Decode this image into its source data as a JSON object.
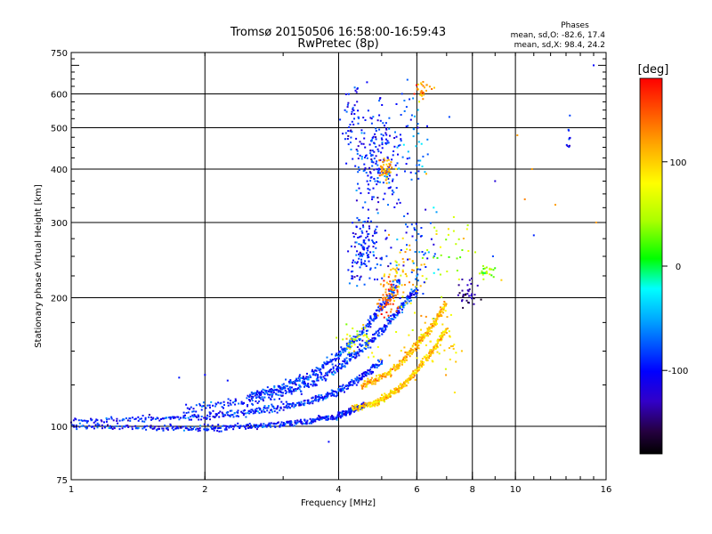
{
  "header": {
    "title_line1": "Tromsø 20150506 16:58:00-16:59:43",
    "title_line2": "RwPretec (8p)"
  },
  "stats": {
    "heading": "Phases",
    "o_mode": "mean, sd,O: -82.6, 17.4",
    "x_mode": "mean, sd,X:  98.4, 24.2"
  },
  "colorbar": {
    "label": "[deg]",
    "ticks": [
      {
        "value": 100,
        "label": "100"
      },
      {
        "value": 0,
        "label": "0"
      },
      {
        "value": -100,
        "label": "-100"
      }
    ],
    "range": [
      -180,
      180
    ]
  },
  "chart_data": {
    "type": "scatter",
    "xlabel": "Frequency [MHz]",
    "ylabel": "Stationary phase Virtual Height [km]",
    "xscale": "log",
    "yscale": "log",
    "xlim": [
      1,
      16
    ],
    "ylim": [
      75,
      750
    ],
    "x_ticks": [
      {
        "value": 1,
        "label": "1"
      },
      {
        "value": 2,
        "label": "2"
      },
      {
        "value": 4,
        "label": "4"
      },
      {
        "value": 6,
        "label": "6"
      },
      {
        "value": 8,
        "label": "8"
      },
      {
        "value": 10,
        "label": "10"
      },
      {
        "value": 16,
        "label": "16"
      }
    ],
    "y_ticks": [
      {
        "value": 75,
        "label": "75"
      },
      {
        "value": 100,
        "label": "100"
      },
      {
        "value": 200,
        "label": "200"
      },
      {
        "value": 300,
        "label": "300"
      },
      {
        "value": 400,
        "label": "400"
      },
      {
        "value": 500,
        "label": "500"
      },
      {
        "value": 600,
        "label": "600"
      },
      {
        "value": 750,
        "label": "750"
      }
    ],
    "grid_x": [
      2,
      4,
      6,
      8,
      10
    ],
    "grid_y": [
      100,
      200,
      300,
      400,
      500,
      600
    ],
    "traces": [
      {
        "points": [
          [
            1.0,
            100
          ],
          [
            1.5,
            99
          ],
          [
            2.0,
            99
          ],
          [
            2.5,
            100
          ],
          [
            3.0,
            101
          ],
          [
            3.5,
            103
          ],
          [
            4.0,
            106
          ],
          [
            4.3,
            109
          ],
          [
            4.6,
            113
          ]
        ],
        "phase": -95,
        "spread": 2.5
      },
      {
        "points": [
          [
            1.0,
            103
          ],
          [
            1.5,
            104
          ],
          [
            2.0,
            106
          ],
          [
            2.5,
            108
          ],
          [
            3.0,
            111
          ],
          [
            3.5,
            115
          ],
          [
            4.0,
            121
          ],
          [
            4.5,
            130
          ],
          [
            5.0,
            142
          ]
        ],
        "phase": -92,
        "spread": 3.0
      },
      {
        "points": [
          [
            1.8,
            110
          ],
          [
            2.5,
            115
          ],
          [
            3.0,
            120
          ],
          [
            3.5,
            127
          ],
          [
            4.0,
            137
          ],
          [
            4.5,
            152
          ],
          [
            5.0,
            168
          ],
          [
            5.5,
            188
          ],
          [
            6.0,
            210
          ]
        ],
        "phase": -90,
        "spread": 4.0
      },
      {
        "points": [
          [
            2.5,
            118
          ],
          [
            3.0,
            124
          ],
          [
            3.5,
            133
          ],
          [
            4.0,
            147
          ],
          [
            4.5,
            165
          ],
          [
            5.0,
            190
          ],
          [
            5.5,
            220
          ]
        ],
        "phase": -88,
        "spread": 3.5
      },
      {
        "points": [
          [
            4.3,
            110
          ],
          [
            4.8,
            113
          ],
          [
            5.2,
            118
          ],
          [
            5.6,
            125
          ],
          [
            6.0,
            135
          ],
          [
            6.5,
            150
          ],
          [
            7.0,
            170
          ]
        ],
        "phase": 100,
        "spread": 2.5
      },
      {
        "points": [
          [
            4.5,
            125
          ],
          [
            5.0,
            130
          ],
          [
            5.5,
            140
          ],
          [
            6.0,
            155
          ],
          [
            6.5,
            172
          ],
          [
            7.0,
            195
          ]
        ],
        "phase": 110,
        "spread": 3.0
      }
    ],
    "clusters": [
      {
        "center": [
          4.9,
          430
        ],
        "sx": 0.06,
        "sy": 0.14,
        "n": 200,
        "phase": -95
      },
      {
        "center": [
          4.3,
          530
        ],
        "sx": 0.03,
        "sy": 0.09,
        "n": 50,
        "phase": -100
      },
      {
        "center": [
          5.1,
          400
        ],
        "sx": 0.02,
        "sy": 0.03,
        "n": 45,
        "phase": 120
      },
      {
        "center": [
          4.6,
          260
        ],
        "sx": 0.05,
        "sy": 0.09,
        "n": 140,
        "phase": -95
      },
      {
        "center": [
          5.2,
          200
        ],
        "sx": 0.03,
        "sy": 0.05,
        "n": 70,
        "phase": 140
      },
      {
        "center": [
          5.6,
          230
        ],
        "sx": 0.05,
        "sy": 0.08,
        "n": 60,
        "phase": 95
      },
      {
        "center": [
          6.2,
          610
        ],
        "sx": 0.02,
        "sy": 0.03,
        "n": 30,
        "phase": 120
      },
      {
        "center": [
          5.8,
          470
        ],
        "sx": 0.05,
        "sy": 0.15,
        "n": 50,
        "phase": -70
      },
      {
        "center": [
          6.0,
          260
        ],
        "sx": 0.07,
        "sy": 0.14,
        "n": 60,
        "phase": -80
      },
      {
        "center": [
          7.8,
          205
        ],
        "sx": 0.03,
        "sy": 0.04,
        "n": 35,
        "phase": -140
      },
      {
        "center": [
          8.6,
          230
        ],
        "sx": 0.02,
        "sy": 0.02,
        "n": 25,
        "phase": 40
      },
      {
        "center": [
          7.0,
          260
        ],
        "sx": 0.06,
        "sy": 0.1,
        "n": 30,
        "phase": 60
      },
      {
        "center": [
          4.5,
          160
        ],
        "sx": 0.05,
        "sy": 0.06,
        "n": 40,
        "phase": 70
      },
      {
        "center": [
          6.5,
          160
        ],
        "sx": 0.08,
        "sy": 0.1,
        "n": 50,
        "phase": 90
      },
      {
        "center": [
          13.2,
          470
        ],
        "sx": 0.005,
        "sy": 0.06,
        "n": 10,
        "phase": -100
      }
    ],
    "isolated": [
      [
        9.0,
        375,
        -120
      ],
      [
        10.1,
        480,
        120
      ],
      [
        10.5,
        340,
        130
      ],
      [
        10.9,
        400,
        120
      ],
      [
        12.3,
        330,
        120
      ],
      [
        15.0,
        700,
        -100
      ],
      [
        15.2,
        300,
        120
      ],
      [
        11.0,
        280,
        -90
      ],
      [
        8.9,
        250,
        -80
      ],
      [
        9.3,
        220,
        100
      ],
      [
        3.8,
        92,
        -100
      ],
      [
        7.3,
        120,
        90
      ],
      [
        6.3,
        390,
        110
      ],
      [
        7.1,
        530,
        -80
      ],
      [
        2.0,
        132,
        -100
      ],
      [
        1.75,
        130,
        -95
      ],
      [
        2.25,
        128,
        -98
      ]
    ]
  }
}
